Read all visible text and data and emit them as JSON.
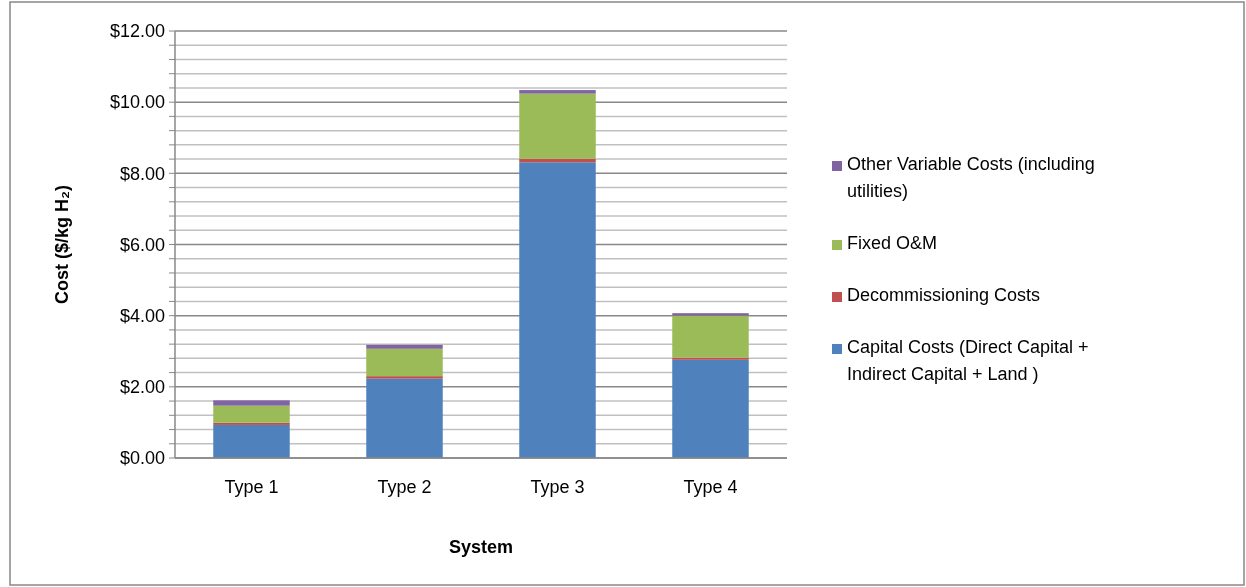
{
  "chart_data": {
    "type": "bar",
    "stacked": true,
    "xlabel": "System",
    "ylabel": "Cost ($/kg H₂)",
    "categories": [
      "Type 1",
      "Type 2",
      "Type 3",
      "Type 4"
    ],
    "series": [
      {
        "name": "Capital Costs  (Direct Capital + Indirect Capital + Land )",
        "color": "#4f81bd",
        "values": [
          0.93,
          2.23,
          8.31,
          2.76
        ]
      },
      {
        "name": "Decommissioning Costs",
        "color": "#c0504d",
        "values": [
          0.06,
          0.07,
          0.1,
          0.06
        ]
      },
      {
        "name": "Fixed O&M",
        "color": "#9bbb59",
        "values": [
          0.48,
          0.77,
          1.83,
          1.18
        ]
      },
      {
        "name": "Other Variable Costs (including utilities)",
        "color": "#8064a2",
        "values": [
          0.15,
          0.11,
          0.1,
          0.07
        ]
      }
    ],
    "ylim": [
      0,
      12
    ],
    "yticks": [
      {
        "value": 0,
        "label": "$0.00"
      },
      {
        "value": 0.4,
        "label": null
      },
      {
        "value": 0.8,
        "label": null
      },
      {
        "value": 1.2,
        "label": null
      },
      {
        "value": 1.6,
        "label": null
      },
      {
        "value": 2,
        "label": "$2.00"
      },
      {
        "value": 2.4,
        "label": null
      },
      {
        "value": 2.8,
        "label": null
      },
      {
        "value": 3.2,
        "label": null
      },
      {
        "value": 3.6,
        "label": null
      },
      {
        "value": 4,
        "label": "$4.00"
      },
      {
        "value": 4.4,
        "label": null
      },
      {
        "value": 4.8,
        "label": null
      },
      {
        "value": 5.2,
        "label": null
      },
      {
        "value": 5.6,
        "label": null
      },
      {
        "value": 6,
        "label": "$6.00"
      },
      {
        "value": 6.4,
        "label": null
      },
      {
        "value": 6.8,
        "label": null
      },
      {
        "value": 7.2,
        "label": null
      },
      {
        "value": 7.6,
        "label": null
      },
      {
        "value": 8,
        "label": "$8.00"
      },
      {
        "value": 8.4,
        "label": null
      },
      {
        "value": 8.8,
        "label": null
      },
      {
        "value": 9.2,
        "label": null
      },
      {
        "value": 9.6,
        "label": null
      },
      {
        "value": 10,
        "label": "$10.00"
      },
      {
        "value": 10.4,
        "label": null
      },
      {
        "value": 10.8,
        "label": null
      },
      {
        "value": 11.2,
        "label": null
      },
      {
        "value": 11.6,
        "label": null
      },
      {
        "value": 12,
        "label": "$12.00"
      }
    ],
    "grid": "y",
    "legend": "right"
  }
}
